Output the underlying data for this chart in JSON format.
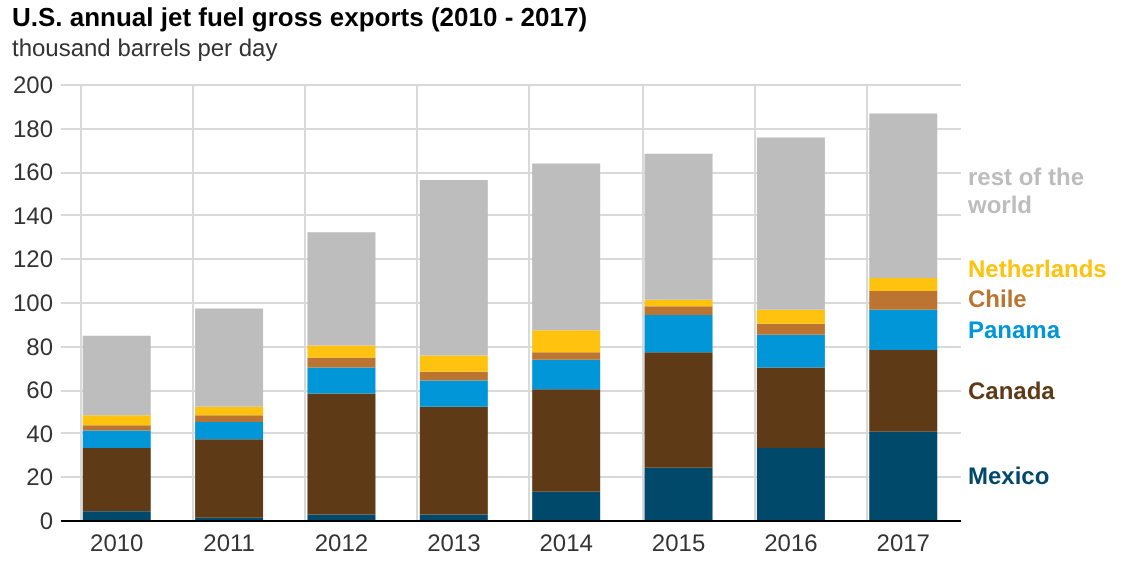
{
  "chart_data": {
    "type": "bar",
    "title": "U.S. annual jet fuel gross exports (2010 - 2017)",
    "subtitle": "thousand barrels per day",
    "categories": [
      "2010",
      "2011",
      "2012",
      "2013",
      "2014",
      "2015",
      "2016",
      "2017"
    ],
    "stacked": true,
    "ylim": [
      0,
      200
    ],
    "yticks": [
      0,
      20,
      40,
      60,
      80,
      100,
      120,
      140,
      160,
      180,
      200
    ],
    "grid": true,
    "legend": "right",
    "series": [
      {
        "name": "Mexico",
        "color": "#00496b",
        "values": [
          4,
          1,
          2.5,
          2.5,
          13,
          24,
          33,
          40.5
        ]
      },
      {
        "name": "Canada",
        "color": "#5f3a17",
        "values": [
          29,
          36,
          55.5,
          49.5,
          47,
          53,
          37,
          37.5
        ]
      },
      {
        "name": "Panama",
        "color": "#0096d7",
        "values": [
          8,
          8,
          12,
          12,
          13.5,
          17,
          15,
          18.5
        ]
      },
      {
        "name": "Chile",
        "color": "#bc7431",
        "values": [
          2.5,
          3,
          4.5,
          4,
          3.5,
          4,
          5,
          8.5
        ]
      },
      {
        "name": "Netherlands",
        "color": "#ffc20e",
        "values": [
          4.5,
          4,
          5.5,
          7.5,
          10,
          3,
          6.5,
          6
        ]
      },
      {
        "name": "rest of the world",
        "color": "#bdbdbd",
        "values": [
          36.5,
          45,
          52,
          80.5,
          76.5,
          67,
          79,
          75.5
        ]
      }
    ]
  }
}
